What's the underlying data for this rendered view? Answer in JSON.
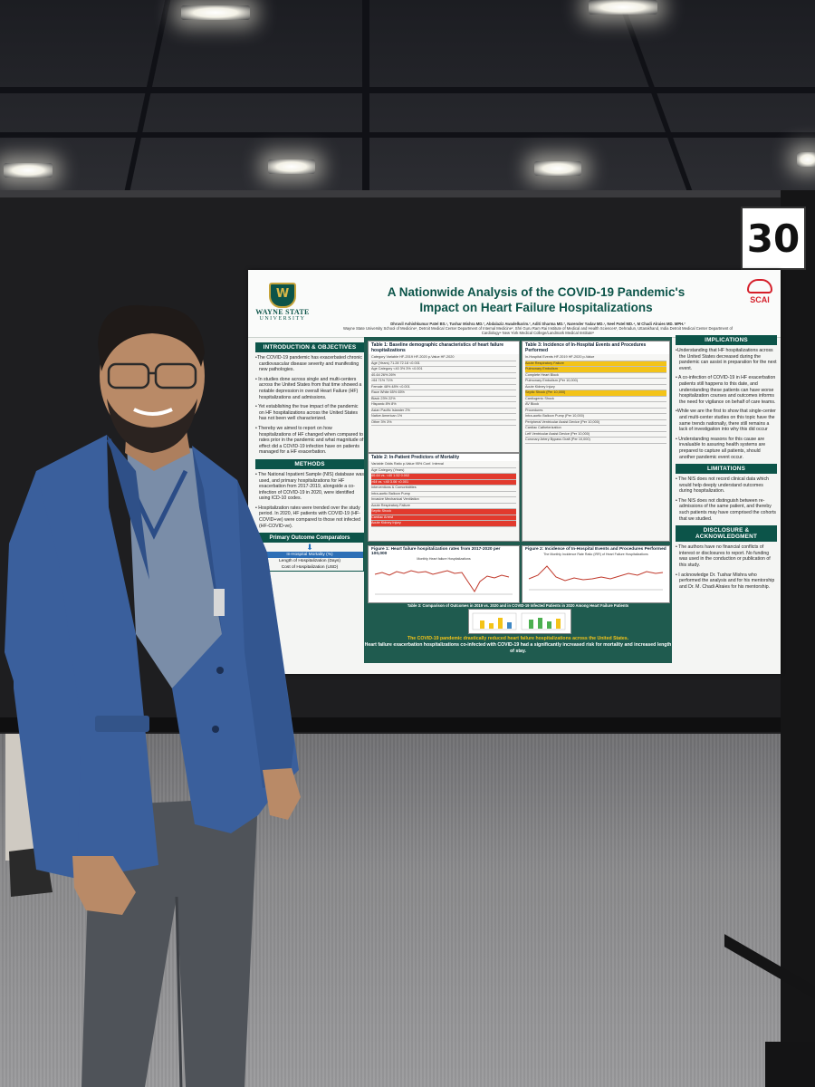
{
  "poster_number": "30",
  "poster": {
    "title_line1": "A Nationwide Analysis of the COVID-19 Pandemic's",
    "title_line2": "Impact on Heart Failure Hospitalizations",
    "authors": "Dhruvil Ashishkumar Patel BS.¹, Tushar Mishra MD.², Abdalaziz Awadelkarim.², Aditi Sharma MD.², Narender Yadav MD.³, Neel Patel MD.⁴, M Chadi Alraies MD. MPH.²",
    "affiliations": "Wayne State University School of Medicine¹, Detroit Medical Center Department of Internal Medicine², Shri Guru Ram Rai Institute of Medical and Health Sciences³, Dehradun, Uttarakhand, India Detroit Medical Center Department of Cardiology⁴ New York Medical College/Landmark Medical Institute⁵",
    "left_logo": {
      "name_line1": "WAYNE STATE",
      "name_line2": "UNIVERSITY",
      "mark": "W"
    },
    "right_logo": "SCAI",
    "sections_left": {
      "intro_title": "INTRODUCTION & OBJECTIVES",
      "intro_paras": [
        "•The COVID-19 pandemic has exacerbated chronic cardiovascular disease severity and manifesting new pathologies.",
        "• In studies done across single and multi-centers across the United States from that time showed a notable depression in overall Heart Failure (HF) hospitalizations and admissions.",
        "• Yet establishing the true impact of the pandemic on HF hospitalizations across the United States has not been well characterized.",
        "• Thereby we aimed to report on how hospitalizations of HF changed when compared to rates prior in the pandemic and what magnitude of effect did a COVID-19 infection have on patients managed for a HF exacerbation."
      ],
      "methods_title": "METHODS",
      "methods_paras": [
        "• The National Inpatient Sample (NIS) database was used, and primary hospitalizations for HF exacerbation from 2017-2019, alongside a co-infection of COVID-19 in 2020, were identified using ICD-10 codes.",
        "• Hospitalization rates were trended over the study period. In 2020, HF patients with COVID-19 (HF-COVID+ve) were compared to those not infected (HF-COVID-ve)."
      ],
      "outcomes_title": "Primary Outcome Comparators",
      "outcomes": [
        "In-Hospital Mortality (%)",
        "Length of Hospitalization (Days)",
        "Cost of Hospitalization (USD)"
      ]
    },
    "center": {
      "table1_title": "Table 1: Baseline demographic characteristics of heart failure hospitalizations",
      "table1_rows": [
        "Category   Variable   HF-2019   HF-2020   p-Value   HF-2020",
        "Age (Years)  71.28  72.18  <0.001",
        "Age Category  <40  3%  3%  <0.001",
        "40-64  26%  26%",
        ">64  71%  71%",
        "Female  48%  48%  <0.001",
        "Race  White  65%  65%",
        "Black  23%  22%",
        "Hispanic  8%  8%",
        "Asian Pacific Islander  2%",
        "Native American  1%",
        "Other  3%  3%"
      ],
      "table2_title": "Table 2: In-Patient Predictors of Mortality",
      "table2_rows": [
        "Variable   Odds Ratio   p-Value   95% Conf. Interval",
        "Age Category (Years)",
        "40-64 vs. <40   1.52   0.002",
        ">64 vs. <40   3.06   <0.001",
        "Interventions & Comorbidities",
        "Intra-aortic Balloon Pump",
        "Invasive Mechanical Ventilation",
        "Acute Respiratory Failure",
        "Septic Shock",
        "Cardiac Arrest",
        "Acute Kidney Injury"
      ],
      "table3_title": "Table 3: Incidence of In-Hospital Events and Procedures Performed",
      "table3_rows": [
        "In-Hospital Events   HF-2019   HF-2020   p-Value",
        "Acute Respiratory Failure",
        "Pulmonary Embolism",
        "Complete Heart Block",
        "Pulmonary Embolism (Per 10,000)",
        "Acute Kidney Injury",
        "Septic Shock (Per 10,000)",
        "Cardiogenic Shock",
        "AV Block",
        "Procedures",
        "Intra-aortic Balloon Pump (Per 10,000)",
        "Peripheral Ventricular Assist Device (Per 10,000)",
        "Cardiac Catheterization",
        "Left Ventricular Assist Device (Per 10,000)",
        "Coronary Artery Bypass Graft (Per 10,000)"
      ],
      "figure1_title": "Figure 1: Heart failure hospitalization rates from 2017-2020 per 100,000",
      "figure1_inner": "Monthly Heart failure Hospitalizations",
      "figure2_title": "Figure 2: Incidence of In-Hospital Events and Procedures Performed",
      "figure2_inner": "The Monthly Incidence Rate Ratio (IRR) of Heart Failure Hospitalizations",
      "figure3_title": "Table 3: Comparison of Outcomes in 2019 vs. 2020 and in COVID-19 Infected Patients in 2020 Among Heart Failure Patients",
      "conclusion_1": "The COVID-19 pandemic drastically reduced heart failure hospitalizations across the United States.",
      "conclusion_2": "Heart failure exacerbation hospitalizations co-infected with COVID-19 had a significantly increased risk for mortality and increased length of stay."
    },
    "sections_right": {
      "implications_title": "IMPLICATIONS",
      "implications_paras": [
        "•Understanding that HF hospitalizations across the United States decreased during the pandemic can assist in preparation for the next event.",
        "• A co-infection of COVID-19 in HF exacerbation patients still happens to this date, and understanding these patients can have worse hospitalization courses and outcomes informs the need for vigilance on behalf of care teams.",
        "•While we are the first to show that single-center and multi-center studies on this topic have the same trends nationally, there still remains a lack of investigation into why this did occur",
        "• Understanding reasons for this cause are invaluable to assuring health systems are prepared to capture all patients, should another pandemic event occur."
      ],
      "limitations_title": "LIMITATIONS",
      "limitations_paras": [
        "• The NIS does not record clinical data which would help deeply understand outcomes during hospitalization.",
        "• The NIS does not distinguish between re-admissions of the same patient, and thereby such patients may have comprised the cohorts that we studied."
      ],
      "disclosure_title": "DISCLOSURE & ACKNOWLEDGMENT",
      "disclosure_paras": [
        "• The authors have no financial conflicts of interest or disclosures to report. No funding was used in the conduction or publication of this study.",
        "• I acknowledge Dr. Tushar Mishra who performed the analysis and for his mentorship and Dr. M. Chadi Alraies for his mentorship."
      ]
    }
  },
  "colors": {
    "poster_green": "#0c5449",
    "center_panel": "#1f5b4f",
    "highlight_yellow": "#f3c318",
    "highlight_red": "#e23a2d",
    "suit_blue": "#3a5f9c"
  }
}
